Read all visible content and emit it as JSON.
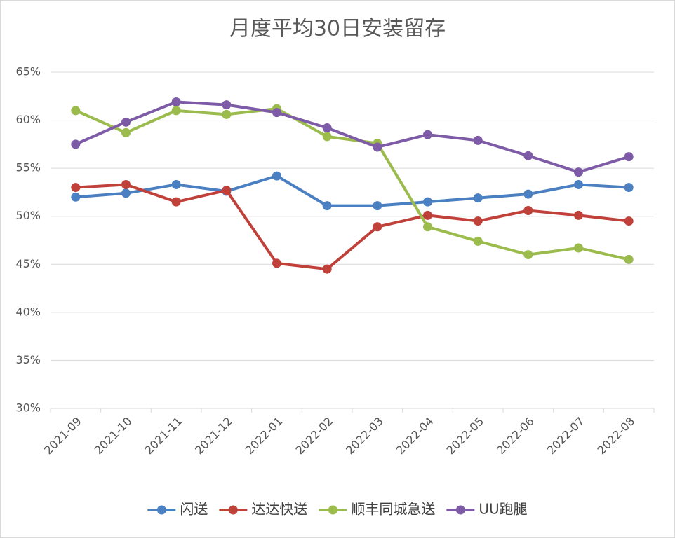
{
  "chart_data": {
    "type": "line",
    "title": "月度平均30日安装留存",
    "categories": [
      "2021-09",
      "2021-10",
      "2021-11",
      "2021-12",
      "2022-01",
      "2022-02",
      "2022-03",
      "2022-04",
      "2022-05",
      "2022-06",
      "2022-07",
      "2022-08"
    ],
    "series": [
      {
        "name": "闪送",
        "color": "#4a7fc1",
        "values": [
          52.0,
          52.4,
          53.3,
          52.6,
          54.2,
          51.1,
          51.1,
          51.5,
          51.9,
          52.3,
          53.3,
          53.0
        ]
      },
      {
        "name": "达达快送",
        "color": "#c0403a",
        "values": [
          53.0,
          53.3,
          51.5,
          52.7,
          45.1,
          44.5,
          48.9,
          50.1,
          49.5,
          50.6,
          50.1,
          49.5
        ]
      },
      {
        "name": "顺丰同城急送",
        "color": "#9bbb4c",
        "values": [
          61.0,
          58.7,
          61.0,
          60.6,
          61.2,
          58.3,
          57.6,
          48.9,
          47.4,
          46.0,
          46.7,
          45.5
        ]
      },
      {
        "name": "UU跑腿",
        "color": "#7d5ba6",
        "values": [
          57.5,
          59.8,
          61.9,
          61.6,
          60.8,
          59.2,
          57.2,
          58.5,
          57.9,
          56.3,
          54.6,
          56.2
        ]
      }
    ],
    "ylim": [
      30,
      65
    ],
    "yticks": [
      {
        "value": 30,
        "label": "30%"
      },
      {
        "value": 35,
        "label": "35%"
      },
      {
        "value": 40,
        "label": "40%"
      },
      {
        "value": 45,
        "label": "45%"
      },
      {
        "value": 50,
        "label": "50%"
      },
      {
        "value": 55,
        "label": "55%"
      },
      {
        "value": 60,
        "label": "60%"
      },
      {
        "value": 65,
        "label": "65%"
      }
    ],
    "grid": true,
    "legend": "bottom"
  }
}
